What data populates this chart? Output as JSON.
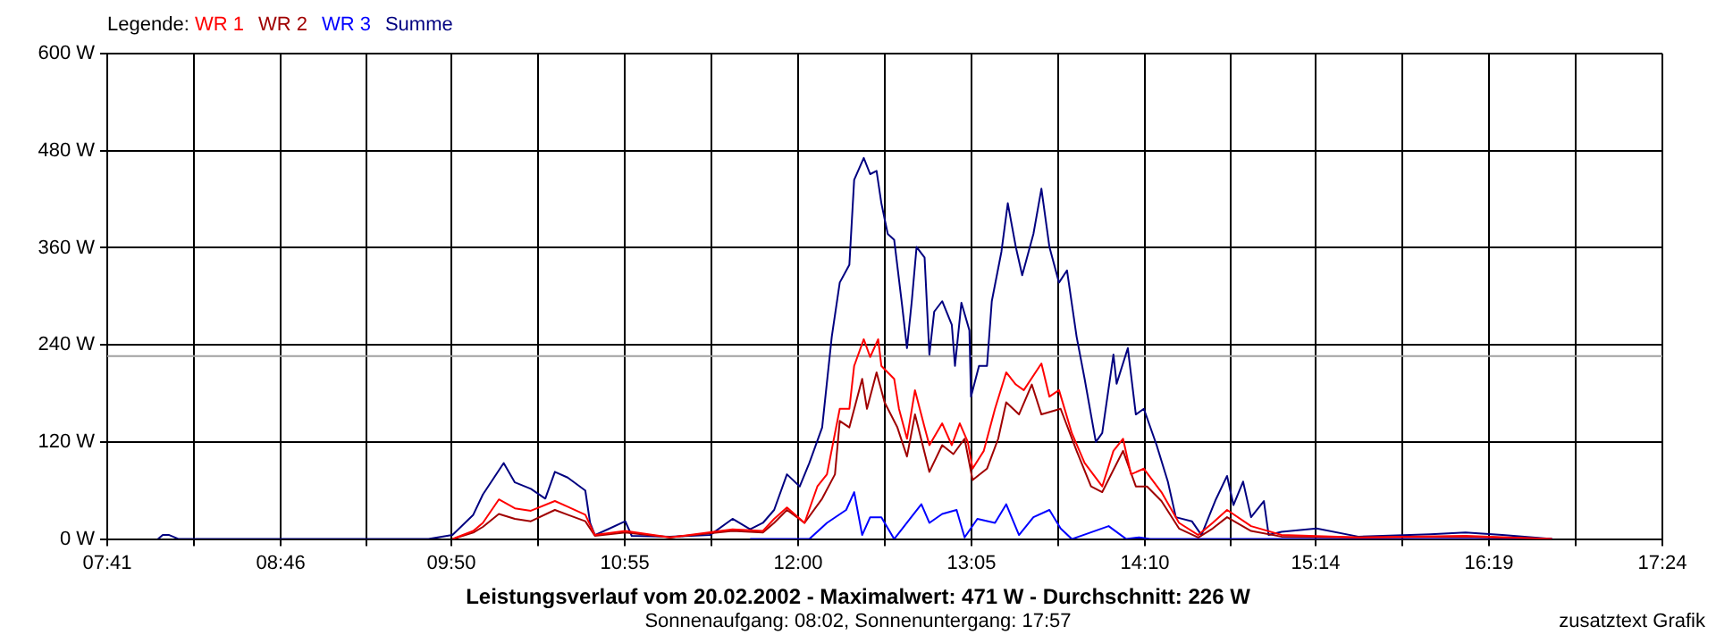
{
  "chart_data": {
    "type": "line",
    "title": "Leistungsverlauf vom 20.02.2002 - Maximalwert: 471 W - Durchschnitt: 226 W",
    "subtitle": "Sonnenaufgang: 08:02, Sonnenuntergang: 17:57",
    "legend_title": "Legende:",
    "annotations": [
      "zusatztext Grafik"
    ],
    "legend": "top left",
    "grid": true,
    "marker": "none",
    "line_style": "solid",
    "xlim": [
      7.683,
      17.4
    ],
    "xticks": [
      {
        "value": 7.683,
        "label": "07:41"
      },
      {
        "value": 8.223,
        "label": null
      },
      {
        "value": 8.767,
        "label": "08:46"
      },
      {
        "value": 9.3,
        "label": null
      },
      {
        "value": 9.833,
        "label": "09:50"
      },
      {
        "value": 10.375,
        "label": null
      },
      {
        "value": 10.917,
        "label": "10:55"
      },
      {
        "value": 11.458,
        "label": null
      },
      {
        "value": 12.0,
        "label": "12:00"
      },
      {
        "value": 12.542,
        "label": null
      },
      {
        "value": 13.083,
        "label": "13:05"
      },
      {
        "value": 13.625,
        "label": null
      },
      {
        "value": 14.167,
        "label": "14:10"
      },
      {
        "value": 14.7,
        "label": null
      },
      {
        "value": 15.233,
        "label": "15:14"
      },
      {
        "value": 15.775,
        "label": null
      },
      {
        "value": 16.317,
        "label": "16:19"
      },
      {
        "value": 16.86,
        "label": null
      },
      {
        "value": 17.4,
        "label": "17:24"
      }
    ],
    "ylim": [
      0,
      600
    ],
    "yticks": [
      {
        "value": 0,
        "label": "0 W"
      },
      {
        "value": 120,
        "label": "120 W"
      },
      {
        "value": 240,
        "label": "240 W"
      },
      {
        "value": 360,
        "label": "360 W"
      },
      {
        "value": 480,
        "label": "480 W"
      },
      {
        "value": 600,
        "label": "600 W"
      }
    ],
    "ref_lines": [
      {
        "axis": "y",
        "value": 226,
        "color": "#a0a0a0"
      }
    ],
    "series": [
      {
        "name": "WR 1",
        "color": "#ff0000",
        "x": [
          9.84,
          9.97,
          10.03,
          10.13,
          10.23,
          10.33,
          10.48,
          10.56,
          10.67,
          10.73,
          10.92,
          11.2,
          11.59,
          11.78,
          11.85,
          11.93,
          12.04,
          12.12,
          12.18,
          12.26,
          12.32,
          12.35,
          12.41,
          12.45,
          12.5,
          12.52,
          12.6,
          12.63,
          12.68,
          12.73,
          12.79,
          12.82,
          12.9,
          12.96,
          13.01,
          13.06,
          13.09,
          13.16,
          13.23,
          13.3,
          13.36,
          13.41,
          13.52,
          13.57,
          13.63,
          13.71,
          13.79,
          13.9,
          13.97,
          14.03,
          14.08,
          14.16,
          14.27,
          14.38,
          14.5,
          14.59,
          14.68,
          14.83,
          15.02,
          15.5,
          16.17,
          16.71
        ],
        "values": [
          0,
          10,
          20,
          49,
          38,
          35,
          47,
          40,
          30,
          5,
          10,
          2,
          12,
          10,
          25,
          39,
          20,
          65,
          80,
          161,
          161,
          214,
          247,
          225,
          247,
          214,
          198,
          161,
          124,
          184,
          138,
          116,
          143,
          116,
          143,
          120,
          87,
          109,
          161,
          206,
          191,
          184,
          217,
          176,
          184,
          131,
          94,
          65,
          109,
          124,
          80,
          87,
          58,
          20,
          5,
          20,
          36,
          16,
          5,
          2,
          4,
          0
        ]
      },
      {
        "name": "WR 2",
        "color": "#a00000",
        "x": [
          9.84,
          9.97,
          10.03,
          10.13,
          10.23,
          10.33,
          10.48,
          10.56,
          10.67,
          10.73,
          10.92,
          11.2,
          11.59,
          11.78,
          11.85,
          11.93,
          12.04,
          12.15,
          12.23,
          12.26,
          12.32,
          12.4,
          12.43,
          12.49,
          12.54,
          12.62,
          12.68,
          12.73,
          12.82,
          12.9,
          12.97,
          13.04,
          13.09,
          13.18,
          13.25,
          13.3,
          13.38,
          13.46,
          13.52,
          13.64,
          13.74,
          13.83,
          13.9,
          14.03,
          14.11,
          14.18,
          14.27,
          14.38,
          14.5,
          14.59,
          14.68,
          14.83,
          15.02,
          15.5,
          16.17,
          16.71
        ],
        "values": [
          0,
          8,
          15,
          31,
          25,
          22,
          36,
          30,
          22,
          4,
          8,
          2,
          10,
          8,
          20,
          36,
          20,
          50,
          80,
          146,
          138,
          198,
          161,
          206,
          169,
          138,
          102,
          154,
          83,
          116,
          105,
          124,
          73,
          87,
          124,
          169,
          154,
          191,
          154,
          161,
          109,
          65,
          58,
          109,
          65,
          65,
          47,
          13,
          2,
          13,
          27,
          10,
          3,
          2,
          3,
          0
        ]
      },
      {
        "name": "WR 3",
        "color": "#0000ff",
        "x": [
          11.7,
          12.07,
          12.18,
          12.3,
          12.35,
          12.4,
          12.45,
          12.52,
          12.6,
          12.77,
          12.82,
          12.9,
          12.99,
          13.04,
          13.12,
          13.23,
          13.3,
          13.38,
          13.47,
          13.57,
          13.64,
          13.71,
          13.94,
          14.05,
          14.13,
          14.2,
          16.71
        ],
        "values": [
          0,
          0,
          20,
          36,
          58,
          5,
          27,
          27,
          0,
          43,
          20,
          31,
          36,
          2,
          25,
          20,
          43,
          5,
          27,
          36,
          13,
          0,
          16,
          0,
          2,
          0,
          0
        ]
      },
      {
        "name": "Summe",
        "color": "#000080",
        "x": [
          8.0,
          8.03,
          8.07,
          8.13,
          9.69,
          9.84,
          9.97,
          10.03,
          10.16,
          10.23,
          10.33,
          10.42,
          10.48,
          10.56,
          10.67,
          10.7,
          10.73,
          10.81,
          10.92,
          10.96,
          11.2,
          11.45,
          11.59,
          11.7,
          11.78,
          11.85,
          11.93,
          12.01,
          12.07,
          12.15,
          12.21,
          12.26,
          12.32,
          12.35,
          12.41,
          12.45,
          12.49,
          12.52,
          12.56,
          12.6,
          12.65,
          12.68,
          12.71,
          12.74,
          12.79,
          12.82,
          12.85,
          12.9,
          12.96,
          12.98,
          13.02,
          13.07,
          13.08,
          13.13,
          13.18,
          13.21,
          13.27,
          13.31,
          13.36,
          13.4,
          13.47,
          13.52,
          13.57,
          13.63,
          13.68,
          13.74,
          13.79,
          13.86,
          13.9,
          13.97,
          13.99,
          14.06,
          14.11,
          14.16,
          14.24,
          14.31,
          14.36,
          14.46,
          14.52,
          14.61,
          14.68,
          14.72,
          14.78,
          14.83,
          14.91,
          14.94,
          15.02,
          15.24,
          15.5,
          15.95,
          16.17,
          16.4,
          16.71
        ],
        "values": [
          0,
          5,
          5,
          0,
          0,
          5,
          30,
          55,
          94,
          70,
          62,
          50,
          83,
          76,
          60,
          20,
          5,
          12,
          22,
          4,
          3,
          5,
          25,
          12,
          20,
          36,
          80,
          65,
          94,
          138,
          250,
          317,
          339,
          444,
          471,
          451,
          455,
          415,
          377,
          370,
          288,
          236,
          294,
          361,
          348,
          228,
          281,
          294,
          265,
          214,
          292,
          258,
          176,
          214,
          214,
          294,
          355,
          415,
          361,
          326,
          377,
          433,
          361,
          317,
          332,
          250,
          198,
          120,
          131,
          228,
          192,
          236,
          154,
          161,
          116,
          71,
          27,
          22,
          5,
          49,
          78,
          42,
          71,
          27,
          47,
          5,
          9,
          13,
          3,
          6,
          8,
          5,
          0
        ]
      }
    ]
  }
}
